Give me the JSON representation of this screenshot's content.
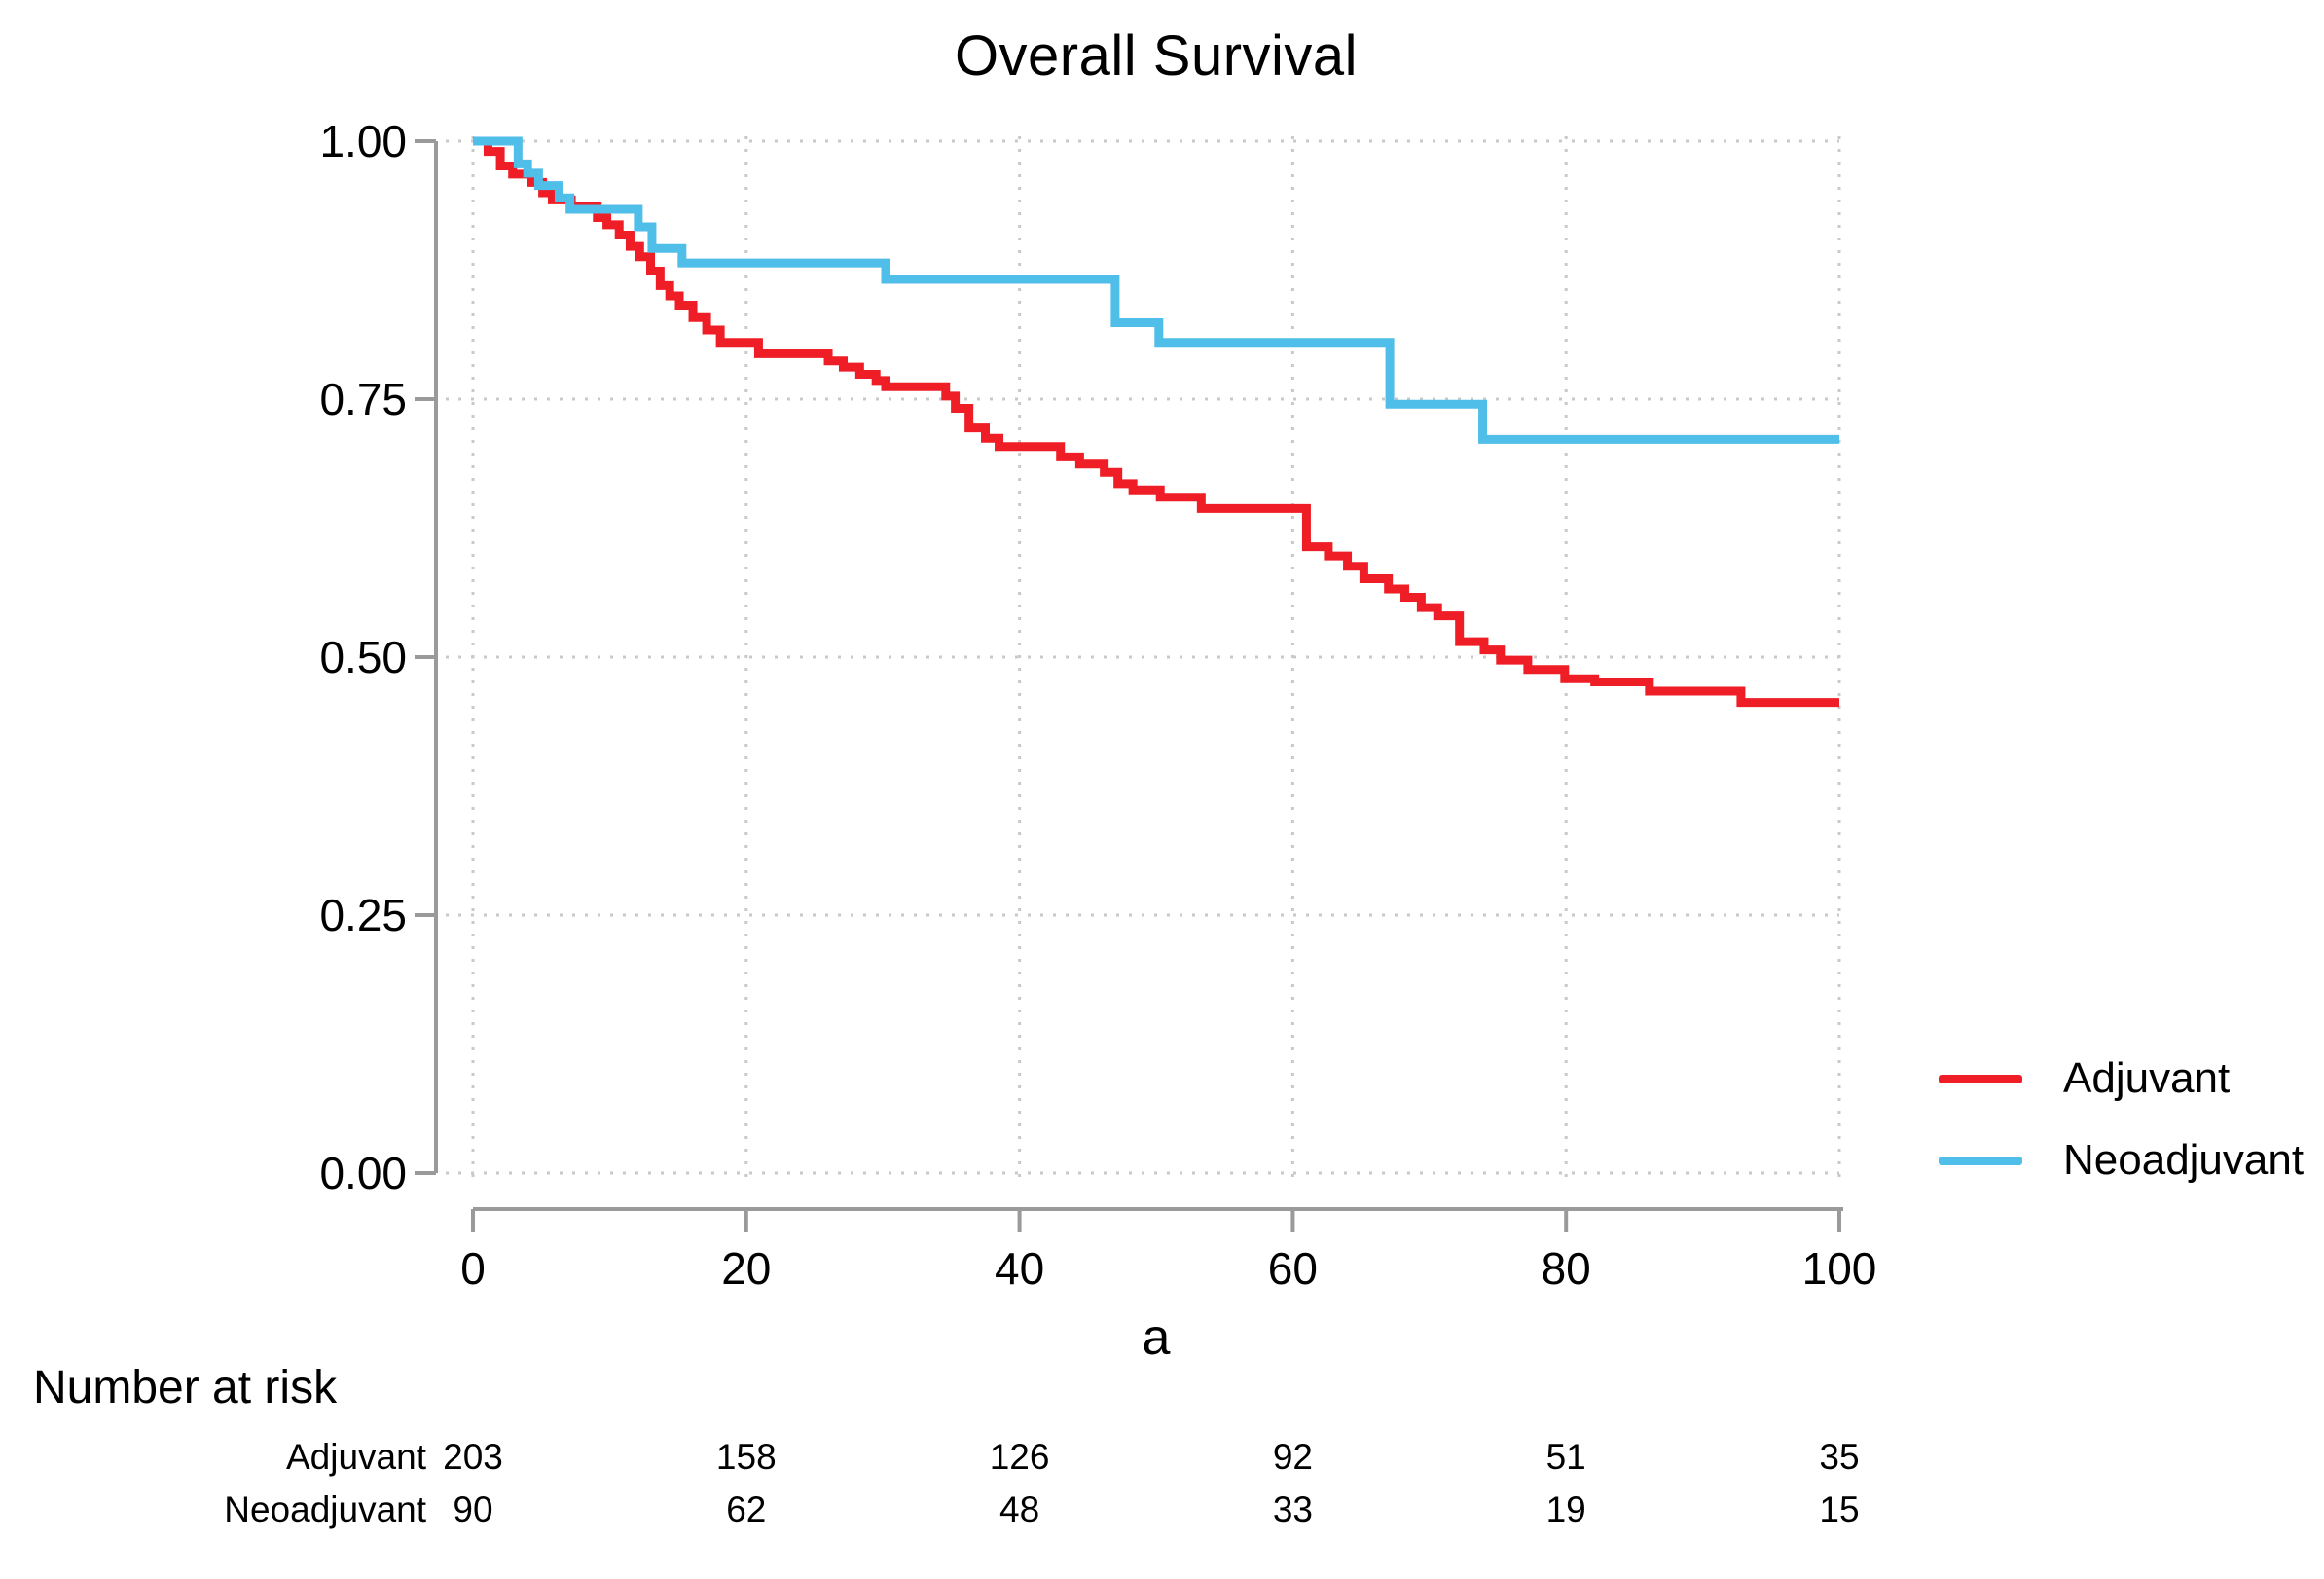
{
  "title": "Overall Survival",
  "axes": {
    "x": {
      "label": "a",
      "ticks": [
        "0",
        "20",
        "40",
        "60",
        "80",
        "100"
      ],
      "tick_values": [
        0,
        20,
        40,
        60,
        80,
        100
      ]
    },
    "y": {
      "label": "",
      "ticks": [
        "1.00",
        "0.75",
        "0.50",
        "0.25",
        "0.00"
      ],
      "tick_values": [
        1.0,
        0.75,
        0.5,
        0.25,
        0.0
      ]
    }
  },
  "legend": {
    "items": [
      {
        "label": "Adjuvant",
        "color": "#EF1D25"
      },
      {
        "label": "Neoadjuvant",
        "color": "#4FBEE8"
      }
    ]
  },
  "risk_table": {
    "heading": "Number at risk",
    "times": [
      0,
      20,
      40,
      60,
      80,
      100
    ],
    "rows": [
      {
        "label": "Adjuvant",
        "values": [
          "203",
          "158",
          "126",
          "92",
          "51",
          "35"
        ]
      },
      {
        "label": "Neoadjuvant",
        "values": [
          "90",
          "62",
          "48",
          "33",
          "19",
          "15"
        ]
      }
    ]
  },
  "chart_data": {
    "type": "line",
    "subtype": "kaplan-meier-step",
    "title": "Overall Survival",
    "xlabel": "a",
    "ylabel": "",
    "xlim": [
      0,
      100
    ],
    "ylim": [
      0,
      1
    ],
    "grid": "dotted-major",
    "legend_position": "right-outside",
    "colors": {
      "grid": "#c9c9c9",
      "axis": "#9a9a9a",
      "text": "#000000"
    },
    "series": [
      {
        "name": "Adjuvant",
        "color": "#EF1D25",
        "points": [
          [
            0,
            1.0
          ],
          [
            1.1,
            0.99
          ],
          [
            2.0,
            0.976
          ],
          [
            2.9,
            0.968
          ],
          [
            4.3,
            0.96
          ],
          [
            5.1,
            0.95
          ],
          [
            5.8,
            0.943
          ],
          [
            7.2,
            0.937
          ],
          [
            9.1,
            0.926
          ],
          [
            9.8,
            0.919
          ],
          [
            10.7,
            0.909
          ],
          [
            11.5,
            0.898
          ],
          [
            12.2,
            0.888
          ],
          [
            13.0,
            0.874
          ],
          [
            13.7,
            0.86
          ],
          [
            14.4,
            0.85
          ],
          [
            15.1,
            0.841
          ],
          [
            16.1,
            0.829
          ],
          [
            17.1,
            0.817
          ],
          [
            18.1,
            0.805
          ],
          [
            20.9,
            0.794
          ],
          [
            26.0,
            0.787
          ],
          [
            27.1,
            0.781
          ],
          [
            28.3,
            0.774
          ],
          [
            29.5,
            0.768
          ],
          [
            30.2,
            0.762
          ],
          [
            34.6,
            0.753
          ],
          [
            35.3,
            0.741
          ],
          [
            36.3,
            0.722
          ],
          [
            37.5,
            0.712
          ],
          [
            38.5,
            0.704
          ],
          [
            43.0,
            0.694
          ],
          [
            44.4,
            0.687
          ],
          [
            46.2,
            0.679
          ],
          [
            47.2,
            0.668
          ],
          [
            48.3,
            0.662
          ],
          [
            50.3,
            0.655
          ],
          [
            53.3,
            0.644
          ],
          [
            61.0,
            0.607
          ],
          [
            62.6,
            0.598
          ],
          [
            64.0,
            0.588
          ],
          [
            65.2,
            0.576
          ],
          [
            67.0,
            0.566
          ],
          [
            68.2,
            0.558
          ],
          [
            69.4,
            0.548
          ],
          [
            70.6,
            0.54
          ],
          [
            72.2,
            0.515
          ],
          [
            74.0,
            0.507
          ],
          [
            75.2,
            0.497
          ],
          [
            77.2,
            0.488
          ],
          [
            79.9,
            0.479
          ],
          [
            82.1,
            0.476
          ],
          [
            86.1,
            0.467
          ],
          [
            92.8,
            0.456
          ],
          [
            100,
            0.456
          ]
        ]
      },
      {
        "name": "Neoadjuvant",
        "color": "#4FBEE8",
        "points": [
          [
            0,
            1.0
          ],
          [
            3.3,
            0.978
          ],
          [
            4.0,
            0.969
          ],
          [
            4.8,
            0.957
          ],
          [
            6.3,
            0.945
          ],
          [
            7.1,
            0.934
          ],
          [
            12.1,
            0.917
          ],
          [
            13.1,
            0.896
          ],
          [
            15.3,
            0.882
          ],
          [
            30.2,
            0.866
          ],
          [
            47.0,
            0.824
          ],
          [
            50.2,
            0.805
          ],
          [
            67.1,
            0.745
          ],
          [
            73.9,
            0.711
          ],
          [
            100,
            0.711
          ]
        ]
      }
    ]
  }
}
